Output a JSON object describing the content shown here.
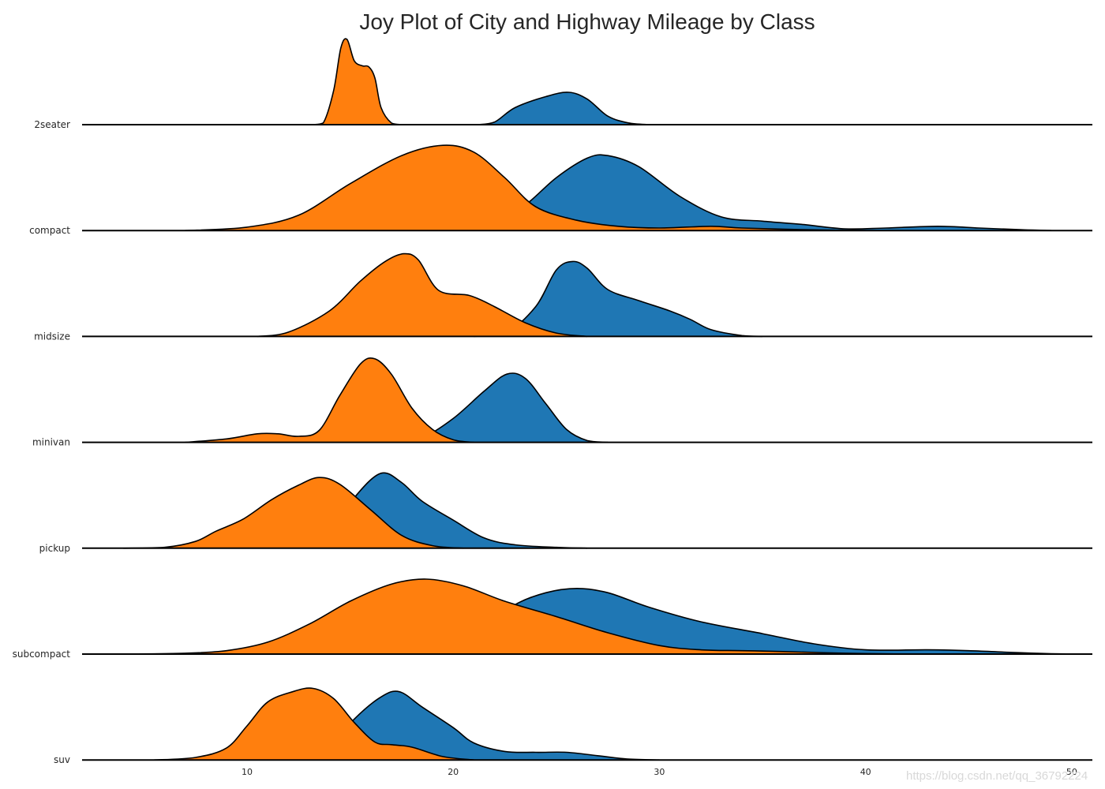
{
  "chart_data": {
    "type": "joyplot",
    "title": "Joy Plot of City and Highway Mileage by Class",
    "xlabel": "",
    "ylabel": "",
    "xlim": [
      2,
      51
    ],
    "xticks": [
      10,
      20,
      30,
      40,
      50
    ],
    "grid": false,
    "legend": "none",
    "series_names": [
      "hwy",
      "cty"
    ],
    "colors": {
      "hwy": "#1f77b4",
      "cty": "#ff7f0e",
      "outline": "#000000"
    },
    "categories": [
      "2seater",
      "compact",
      "midsize",
      "minivan",
      "pickup",
      "subcompact",
      "suv"
    ],
    "rows": [
      {
        "label": "2seater",
        "hwy": [
          [
            21.2,
            0
          ],
          [
            22.0,
            0.03
          ],
          [
            23.0,
            0.2
          ],
          [
            24.5,
            0.33
          ],
          [
            25.6,
            0.38
          ],
          [
            26.5,
            0.3
          ],
          [
            27.5,
            0.1
          ],
          [
            28.5,
            0.02
          ],
          [
            29.5,
            0
          ]
        ],
        "cty": [
          [
            13.2,
            0
          ],
          [
            13.7,
            0.02
          ],
          [
            14.2,
            0.4
          ],
          [
            14.55,
            0.9
          ],
          [
            14.85,
            1.0
          ],
          [
            15.2,
            0.75
          ],
          [
            15.6,
            0.69
          ],
          [
            15.9,
            0.68
          ],
          [
            16.2,
            0.55
          ],
          [
            16.5,
            0.2
          ],
          [
            17.0,
            0.02
          ],
          [
            17.5,
            0
          ]
        ]
      },
      {
        "label": "compact",
        "hwy": [
          [
            20.0,
            0
          ],
          [
            22.0,
            0.08
          ],
          [
            23.5,
            0.3
          ],
          [
            25.0,
            0.62
          ],
          [
            26.5,
            0.85
          ],
          [
            27.5,
            0.88
          ],
          [
            29.0,
            0.75
          ],
          [
            31.0,
            0.4
          ],
          [
            33.0,
            0.16
          ],
          [
            35.0,
            0.11
          ],
          [
            37.0,
            0.07
          ],
          [
            39.0,
            0.02
          ],
          [
            41.0,
            0.03
          ],
          [
            43.5,
            0.05
          ],
          [
            45.5,
            0.03
          ],
          [
            47.5,
            0.01
          ],
          [
            49.0,
            0
          ]
        ],
        "cty": [
          [
            7.0,
            0
          ],
          [
            10.0,
            0.04
          ],
          [
            12.5,
            0.18
          ],
          [
            15.0,
            0.55
          ],
          [
            17.5,
            0.88
          ],
          [
            19.5,
            1.0
          ],
          [
            21.0,
            0.92
          ],
          [
            22.5,
            0.62
          ],
          [
            24.0,
            0.28
          ],
          [
            26.0,
            0.12
          ],
          [
            28.0,
            0.05
          ],
          [
            30.0,
            0.03
          ],
          [
            32.5,
            0.05
          ],
          [
            34.0,
            0.03
          ],
          [
            37.0,
            0.01
          ],
          [
            40.0,
            0
          ]
        ]
      },
      {
        "label": "midsize",
        "hwy": [
          [
            21.0,
            0
          ],
          [
            22.5,
            0.03
          ],
          [
            24.0,
            0.35
          ],
          [
            25.0,
            0.78
          ],
          [
            25.8,
            0.88
          ],
          [
            26.5,
            0.8
          ],
          [
            27.5,
            0.55
          ],
          [
            29.0,
            0.42
          ],
          [
            30.5,
            0.3
          ],
          [
            31.5,
            0.2
          ],
          [
            32.5,
            0.08
          ],
          [
            34.0,
            0.01
          ],
          [
            35.0,
            0
          ]
        ],
        "cty": [
          [
            10.5,
            0
          ],
          [
            12.0,
            0.05
          ],
          [
            14.0,
            0.3
          ],
          [
            15.5,
            0.65
          ],
          [
            16.7,
            0.88
          ],
          [
            17.6,
            0.97
          ],
          [
            18.3,
            0.9
          ],
          [
            19.3,
            0.54
          ],
          [
            20.8,
            0.48
          ],
          [
            22.0,
            0.35
          ],
          [
            23.5,
            0.16
          ],
          [
            25.0,
            0.04
          ],
          [
            26.5,
            0
          ]
        ]
      },
      {
        "label": "minivan",
        "hwy": [
          [
            17.5,
            0
          ],
          [
            18.5,
            0.05
          ],
          [
            20.0,
            0.28
          ],
          [
            21.5,
            0.6
          ],
          [
            22.6,
            0.8
          ],
          [
            23.5,
            0.75
          ],
          [
            24.5,
            0.45
          ],
          [
            25.5,
            0.15
          ],
          [
            26.5,
            0.02
          ],
          [
            27.5,
            0
          ]
        ],
        "cty": [
          [
            7.0,
            0
          ],
          [
            9.0,
            0.04
          ],
          [
            10.5,
            0.1
          ],
          [
            11.5,
            0.1
          ],
          [
            12.5,
            0.07
          ],
          [
            13.5,
            0.14
          ],
          [
            14.5,
            0.55
          ],
          [
            15.5,
            0.92
          ],
          [
            16.2,
            0.98
          ],
          [
            17.0,
            0.8
          ],
          [
            18.0,
            0.4
          ],
          [
            19.0,
            0.15
          ],
          [
            20.0,
            0.03
          ],
          [
            21.0,
            0
          ]
        ]
      },
      {
        "label": "pickup",
        "hwy": [
          [
            13.0,
            0
          ],
          [
            14.2,
            0.22
          ],
          [
            15.3,
            0.62
          ],
          [
            16.5,
            0.88
          ],
          [
            17.5,
            0.77
          ],
          [
            18.5,
            0.55
          ],
          [
            20.0,
            0.33
          ],
          [
            21.5,
            0.12
          ],
          [
            23.0,
            0.04
          ],
          [
            25.0,
            0.01
          ],
          [
            26.5,
            0
          ]
        ],
        "cty": [
          [
            4.0,
            0
          ],
          [
            6.0,
            0.01
          ],
          [
            7.5,
            0.08
          ],
          [
            8.5,
            0.2
          ],
          [
            9.8,
            0.34
          ],
          [
            11.2,
            0.57
          ],
          [
            12.5,
            0.74
          ],
          [
            13.5,
            0.83
          ],
          [
            14.5,
            0.75
          ],
          [
            16.0,
            0.45
          ],
          [
            17.5,
            0.15
          ],
          [
            19.0,
            0.03
          ],
          [
            20.5,
            0
          ]
        ]
      },
      {
        "label": "subcompact",
        "hwy": [
          [
            20.0,
            0
          ],
          [
            21.5,
            0.3
          ],
          [
            23.0,
            0.58
          ],
          [
            24.5,
            0.72
          ],
          [
            26.0,
            0.77
          ],
          [
            27.5,
            0.72
          ],
          [
            29.5,
            0.55
          ],
          [
            32.0,
            0.38
          ],
          [
            35.0,
            0.24
          ],
          [
            37.5,
            0.12
          ],
          [
            40.0,
            0.05
          ],
          [
            43.0,
            0.05
          ],
          [
            45.0,
            0.04
          ],
          [
            47.0,
            0.02
          ],
          [
            49.0,
            0.005
          ],
          [
            51.0,
            0
          ]
        ],
        "cty": [
          [
            4.0,
            0
          ],
          [
            7.0,
            0.01
          ],
          [
            9.0,
            0.04
          ],
          [
            11.0,
            0.14
          ],
          [
            13.0,
            0.35
          ],
          [
            15.0,
            0.62
          ],
          [
            17.0,
            0.82
          ],
          [
            18.7,
            0.88
          ],
          [
            20.5,
            0.8
          ],
          [
            22.5,
            0.62
          ],
          [
            25.0,
            0.44
          ],
          [
            27.5,
            0.25
          ],
          [
            30.0,
            0.1
          ],
          [
            32.0,
            0.05
          ],
          [
            34.0,
            0.04
          ],
          [
            36.0,
            0.03
          ],
          [
            39.0,
            0.01
          ],
          [
            42.0,
            0
          ]
        ]
      },
      {
        "label": "suv",
        "hwy": [
          [
            13.0,
            0
          ],
          [
            14.2,
            0.2
          ],
          [
            15.2,
            0.48
          ],
          [
            16.5,
            0.74
          ],
          [
            17.4,
            0.8
          ],
          [
            18.5,
            0.62
          ],
          [
            20.0,
            0.38
          ],
          [
            21.0,
            0.2
          ],
          [
            22.5,
            0.1
          ],
          [
            24.0,
            0.09
          ],
          [
            25.5,
            0.09
          ],
          [
            27.0,
            0.05
          ],
          [
            28.5,
            0.01
          ],
          [
            30.0,
            0
          ]
        ],
        "cty": [
          [
            5.5,
            0
          ],
          [
            7.5,
            0.03
          ],
          [
            9.0,
            0.14
          ],
          [
            10.0,
            0.4
          ],
          [
            11.0,
            0.68
          ],
          [
            12.2,
            0.8
          ],
          [
            13.2,
            0.84
          ],
          [
            14.2,
            0.72
          ],
          [
            15.2,
            0.44
          ],
          [
            16.2,
            0.21
          ],
          [
            17.0,
            0.18
          ],
          [
            18.0,
            0.15
          ],
          [
            19.5,
            0.04
          ],
          [
            21.0,
            0
          ]
        ]
      }
    ]
  },
  "watermark": "https://blog.csdn.net/qq_36792224"
}
